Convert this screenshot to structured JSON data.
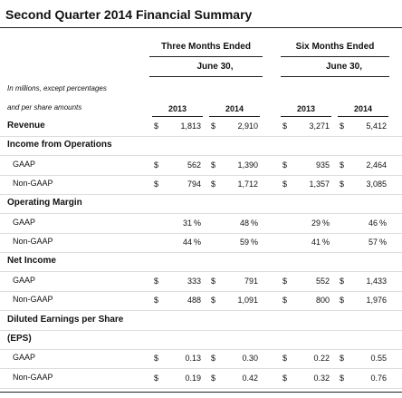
{
  "header": {
    "title": "Second Quarter 2014 Financial Summary"
  },
  "table": {
    "groups": [
      {
        "label": "Three Months Ended",
        "sub": "June 30,"
      },
      {
        "label": "Six Months Ended",
        "sub": "June 30,"
      }
    ],
    "note": [
      "In millions, except percentages",
      "and per share amounts"
    ],
    "years": [
      "2013",
      "2014",
      "2013",
      "2014"
    ],
    "rows": [
      {
        "label": "Revenue",
        "bold": true,
        "cells": [
          {
            "pre": "$",
            "num": "1,813"
          },
          {
            "pre": "$",
            "num": "2,910"
          },
          {
            "pre": "$",
            "num": "3,271"
          },
          {
            "pre": "$",
            "num": "5,412"
          }
        ]
      },
      {
        "label": "Income from Operations",
        "bold": true
      },
      {
        "label": "GAAP",
        "cells": [
          {
            "pre": "$",
            "num": "562"
          },
          {
            "pre": "$",
            "num": "1,390"
          },
          {
            "pre": "$",
            "num": "935"
          },
          {
            "pre": "$",
            "num": "2,464"
          }
        ]
      },
      {
        "label": "Non-GAAP",
        "cells": [
          {
            "pre": "$",
            "num": "794"
          },
          {
            "pre": "$",
            "num": "1,712"
          },
          {
            "pre": "$",
            "num": "1,357"
          },
          {
            "pre": "$",
            "num": "3,085"
          }
        ]
      },
      {
        "label": "Operating Margin",
        "bold": true
      },
      {
        "label": "GAAP",
        "cells": [
          {
            "num": "31",
            "post": "%"
          },
          {
            "num": "48",
            "post": "%"
          },
          {
            "num": "29",
            "post": "%"
          },
          {
            "num": "46",
            "post": "%"
          }
        ]
      },
      {
        "label": "Non-GAAP",
        "cells": [
          {
            "num": "44",
            "post": "%"
          },
          {
            "num": "59",
            "post": "%"
          },
          {
            "num": "41",
            "post": "%"
          },
          {
            "num": "57",
            "post": "%"
          }
        ]
      },
      {
        "label": "Net Income",
        "bold": true
      },
      {
        "label": "GAAP",
        "cells": [
          {
            "pre": "$",
            "num": "333"
          },
          {
            "pre": "$",
            "num": "791"
          },
          {
            "pre": "$",
            "num": "552"
          },
          {
            "pre": "$",
            "num": "1,433"
          }
        ]
      },
      {
        "label": "Non-GAAP",
        "cells": [
          {
            "pre": "$",
            "num": "488"
          },
          {
            "pre": "$",
            "num": "1,091"
          },
          {
            "pre": "$",
            "num": "800"
          },
          {
            "pre": "$",
            "num": "1,976"
          }
        ]
      },
      {
        "label": "Diluted Earnings per Share",
        "bold": true
      },
      {
        "label": "(EPS)",
        "bold": true
      },
      {
        "label": "GAAP",
        "cells": [
          {
            "pre": "$",
            "num": "0.13"
          },
          {
            "pre": "$",
            "num": "0.30"
          },
          {
            "pre": "$",
            "num": "0.22"
          },
          {
            "pre": "$",
            "num": "0.55"
          }
        ]
      },
      {
        "label": "Non-GAAP",
        "cells": [
          {
            "pre": "$",
            "num": "0.19"
          },
          {
            "pre": "$",
            "num": "0.42"
          },
          {
            "pre": "$",
            "num": "0.32"
          },
          {
            "pre": "$",
            "num": "0.76"
          }
        ]
      }
    ]
  }
}
